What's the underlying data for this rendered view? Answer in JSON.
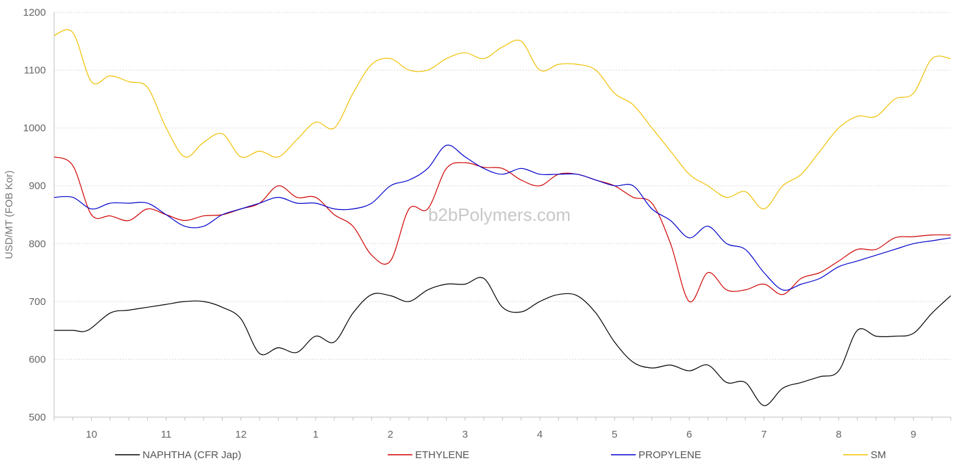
{
  "chart_data": {
    "type": "line",
    "title": "",
    "xlabel": "",
    "ylabel": "USD/MT (FOB Kor)",
    "ylim": [
      500,
      1200
    ],
    "yticks": [
      500,
      600,
      700,
      800,
      900,
      1000,
      1100,
      1200
    ],
    "grid": "horizontal dotted",
    "legend_position": "bottom",
    "watermark": "b2bPolymers.com",
    "x_range": [
      0,
      24
    ],
    "month_labels": [
      {
        "label": "10",
        "x": 1
      },
      {
        "label": "11",
        "x": 3
      },
      {
        "label": "12",
        "x": 5
      },
      {
        "label": "1",
        "x": 7
      },
      {
        "label": "2",
        "x": 9
      },
      {
        "label": "3",
        "x": 11
      },
      {
        "label": "4",
        "x": 13
      },
      {
        "label": "5",
        "x": 15
      },
      {
        "label": "6",
        "x": 17
      },
      {
        "label": "7",
        "x": 19
      },
      {
        "label": "8",
        "x": 21
      },
      {
        "label": "9",
        "x": 23
      }
    ],
    "series": [
      {
        "name": "NAPHTHA (CFR Jap)",
        "color": "#000000",
        "x": [
          0,
          0.5,
          0.9,
          1.5,
          2,
          2.5,
          3,
          3.5,
          4,
          4.5,
          5,
          5.5,
          6,
          6.5,
          7,
          7.5,
          8,
          8.5,
          9,
          9.5,
          10,
          10.5,
          11,
          11.5,
          12,
          12.5,
          13,
          13.5,
          14,
          14.5,
          15,
          15.5,
          16,
          16.5,
          17,
          17.5,
          18,
          18.5,
          19,
          19.5,
          20,
          20.5,
          21,
          21.5,
          22,
          22.5,
          23,
          23.5,
          24
        ],
        "values": [
          650,
          650,
          650,
          680,
          685,
          690,
          695,
          700,
          700,
          690,
          670,
          610,
          620,
          612,
          640,
          630,
          680,
          712,
          710,
          700,
          720,
          730,
          730,
          740,
          690,
          682,
          700,
          712,
          710,
          680,
          630,
          595,
          585,
          590,
          580,
          590,
          560,
          560,
          520,
          550,
          560,
          570,
          580,
          650,
          640,
          640,
          645,
          680,
          710
        ]
      },
      {
        "name": "ETHYLENE",
        "color": "#d00000",
        "x": [
          0,
          0.5,
          1,
          1.5,
          2,
          2.5,
          3,
          3.5,
          4,
          4.5,
          5,
          5.5,
          6,
          6.5,
          7,
          7.5,
          8,
          8.5,
          9,
          9.5,
          10,
          10.5,
          11,
          11.5,
          12,
          12.5,
          13,
          13.5,
          14,
          14.5,
          15,
          15.5,
          16,
          16.5,
          17,
          17.5,
          18,
          18.5,
          19,
          19.5,
          20,
          20.5,
          21,
          21.5,
          22,
          22.5,
          23,
          23.5,
          24
        ],
        "values": [
          950,
          935,
          850,
          848,
          840,
          860,
          850,
          840,
          848,
          850,
          860,
          870,
          900,
          880,
          880,
          850,
          830,
          780,
          770,
          860,
          860,
          930,
          940,
          932,
          930,
          910,
          900,
          920,
          920,
          910,
          900,
          880,
          870,
          800,
          700,
          750,
          720,
          720,
          730,
          712,
          740,
          750,
          770,
          790,
          790,
          810,
          812,
          815,
          815
        ]
      },
      {
        "name": "PROPYLENE",
        "color": "#0000cc",
        "x": [
          0,
          0.5,
          1,
          1.5,
          2,
          2.5,
          3,
          3.5,
          4,
          4.5,
          5,
          5.5,
          6,
          6.5,
          7,
          7.5,
          8,
          8.5,
          9,
          9.5,
          10,
          10.5,
          11,
          11.5,
          12,
          12.5,
          13,
          13.5,
          14,
          14.5,
          15,
          15.5,
          16,
          16.5,
          17,
          17.5,
          18,
          18.5,
          19,
          19.5,
          20,
          20.5,
          21,
          21.5,
          22,
          22.5,
          23,
          23.5,
          24
        ],
        "values": [
          880,
          880,
          860,
          870,
          870,
          870,
          850,
          830,
          830,
          850,
          860,
          870,
          880,
          870,
          870,
          860,
          860,
          870,
          900,
          910,
          930,
          970,
          950,
          930,
          920,
          930,
          920,
          920,
          920,
          910,
          900,
          900,
          860,
          840,
          810,
          830,
          800,
          790,
          750,
          720,
          730,
          740,
          760,
          770,
          780,
          790,
          800,
          805,
          810
        ]
      },
      {
        "name": "SM",
        "color": "#f0c000",
        "x": [
          0,
          0.5,
          1,
          1.5,
          2,
          2.5,
          3,
          3.5,
          4,
          4.5,
          5,
          5.5,
          6,
          6.5,
          7,
          7.5,
          8,
          8.5,
          9,
          9.5,
          10,
          10.5,
          11,
          11.5,
          12,
          12.5,
          13,
          13.5,
          14,
          14.5,
          15,
          15.5,
          16,
          16.5,
          17,
          17.5,
          18,
          18.5,
          19,
          19.5,
          20,
          20.5,
          21,
          21.5,
          22,
          22.5,
          23,
          23.5,
          24
        ],
        "values": [
          1160,
          1165,
          1080,
          1090,
          1080,
          1070,
          1000,
          950,
          975,
          990,
          950,
          960,
          950,
          980,
          1010,
          1000,
          1060,
          1110,
          1120,
          1100,
          1100,
          1120,
          1130,
          1120,
          1140,
          1150,
          1100,
          1110,
          1110,
          1100,
          1060,
          1040,
          1000,
          960,
          920,
          900,
          880,
          890,
          860,
          900,
          920,
          960,
          1000,
          1020,
          1020,
          1050,
          1060,
          1120,
          1120
        ]
      }
    ]
  }
}
